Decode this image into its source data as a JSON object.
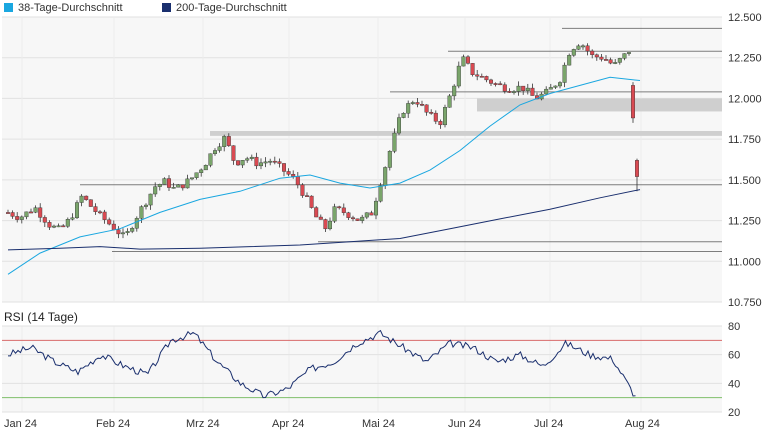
{
  "legend": [
    {
      "label": "38-Tage-Durchschnitt",
      "color": "#1aa7e0"
    },
    {
      "label": "200-Tage-Durchschnitt",
      "color": "#1a2f6e"
    }
  ],
  "rsi_title": "RSI (14 Tage)",
  "chart_data": [
    {
      "type": "candlestick",
      "y_ticks": [
        "12.500",
        "12.250",
        "12.000",
        "11.750",
        "11.500",
        "11.250",
        "11.000",
        "10.750"
      ],
      "ylim": [
        10750,
        12500
      ],
      "x_labels": [
        "Jan 24",
        "Feb 24",
        "Mrz 24",
        "Apr 24",
        "Mai 24",
        "Jun 24",
        "Jul 24",
        "Aug 24"
      ],
      "grid": true,
      "support_resistance_levels": [
        12430,
        12290,
        12040,
        11470,
        11120,
        11060
      ],
      "shaded_zones": [
        [
          11920,
          12000
        ],
        [
          11770,
          11800
        ]
      ],
      "series": [
        {
          "name": "38-Tage-Durchschnitt",
          "values": [
            10900,
            11200,
            11360,
            11450,
            11520,
            11450,
            11380,
            11820,
            12050,
            12120
          ]
        },
        {
          "name": "200-Tage-Durchschnitt",
          "values": [
            11070,
            11080,
            11075,
            11090,
            11110,
            11140,
            11240,
            11350,
            11420
          ]
        },
        {
          "name": "Kurs",
          "values": [
            11300,
            11150,
            11400,
            11760,
            11480,
            11280,
            11680,
            12250,
            12000,
            12350,
            11800,
            11570
          ]
        }
      ]
    },
    {
      "type": "line",
      "title": "RSI (14 Tage)",
      "y_ticks": [
        "80",
        "60",
        "40",
        "20"
      ],
      "ylim": [
        20,
        80
      ],
      "reference_lines": [
        70,
        30
      ],
      "values": [
        60,
        65,
        55,
        48,
        60,
        52,
        46,
        70,
        75,
        55,
        40,
        31,
        36,
        50,
        55,
        68,
        75,
        65,
        55,
        68,
        65,
        55,
        60,
        52,
        68,
        60,
        57,
        30
      ]
    }
  ]
}
